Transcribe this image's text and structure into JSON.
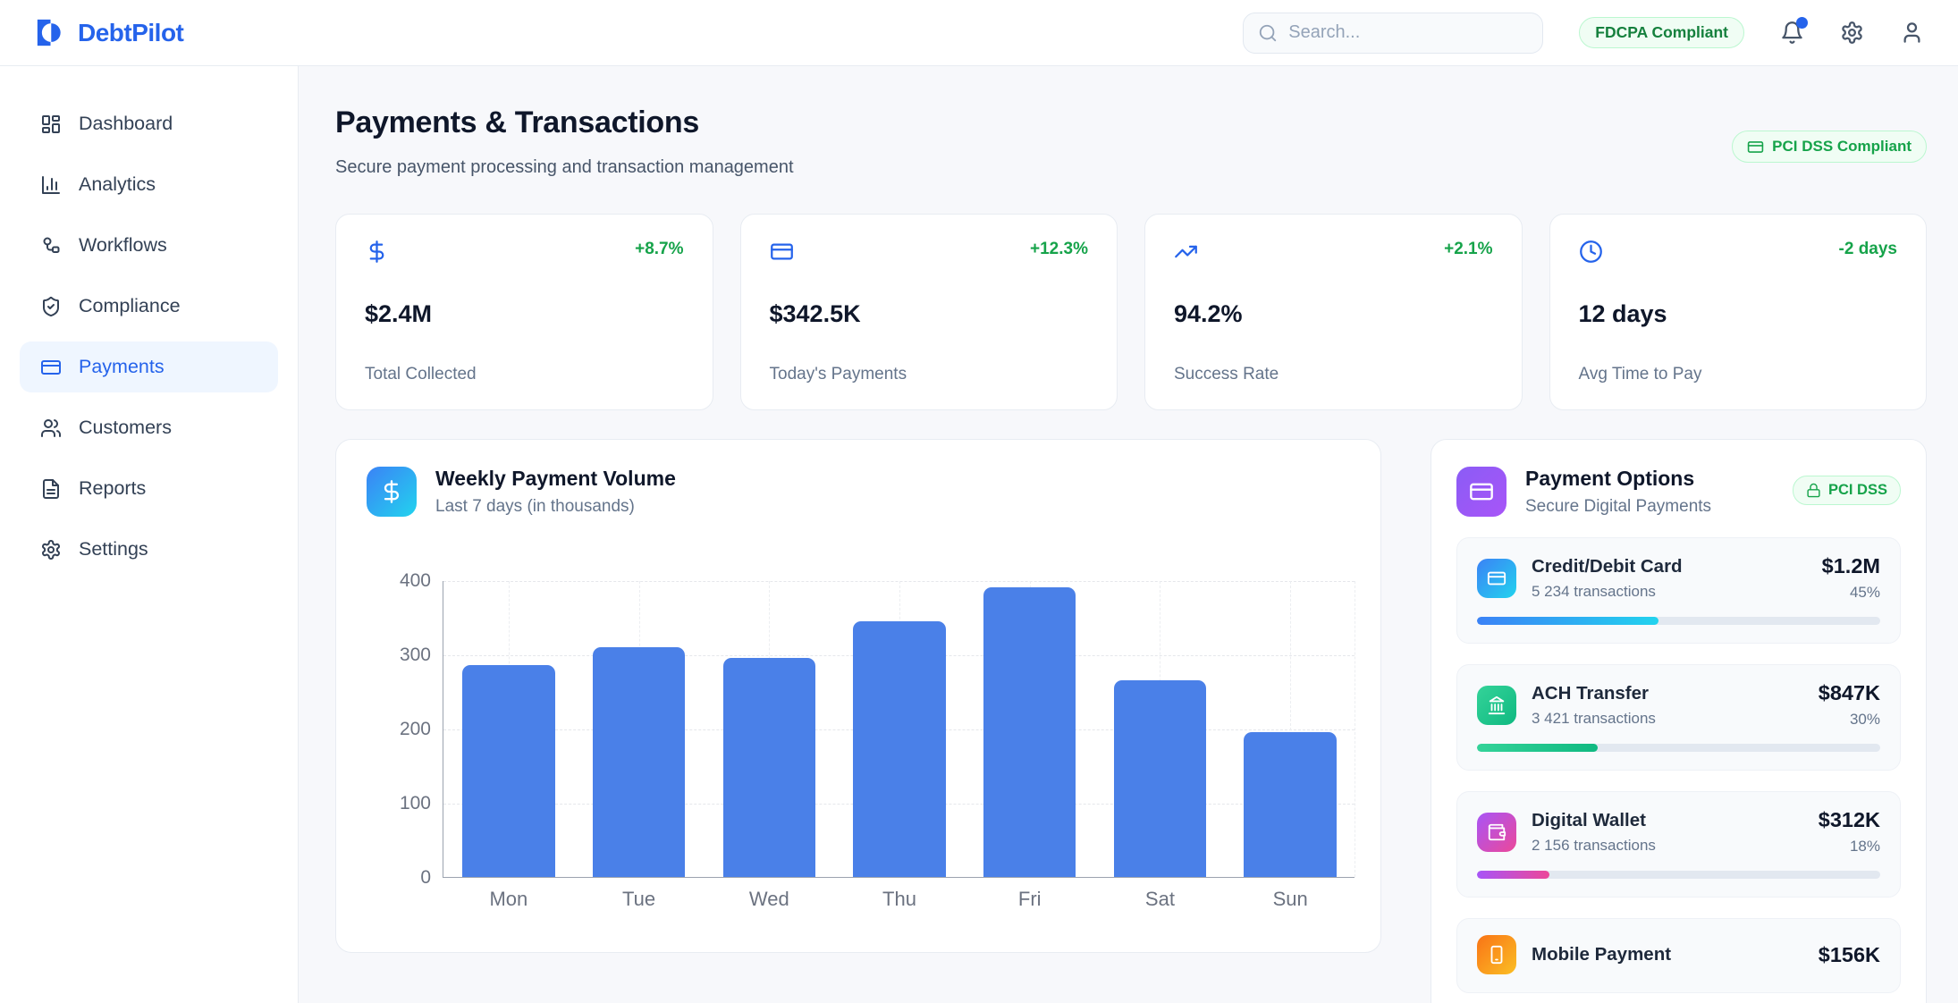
{
  "brand": {
    "name": "DebtPilot",
    "accent_color": "#2563eb"
  },
  "header": {
    "search_placeholder": "Search...",
    "compliance_badge": "FDCPA Compliant"
  },
  "sidebar": {
    "items": [
      {
        "label": "Dashboard",
        "icon": "dashboard-grid-icon",
        "active": false
      },
      {
        "label": "Analytics",
        "icon": "bar-chart-icon",
        "active": false
      },
      {
        "label": "Workflows",
        "icon": "workflow-icon",
        "active": false
      },
      {
        "label": "Compliance",
        "icon": "shield-check-icon",
        "active": false
      },
      {
        "label": "Payments",
        "icon": "credit-card-icon",
        "active": true
      },
      {
        "label": "Customers",
        "icon": "users-icon",
        "active": false
      },
      {
        "label": "Reports",
        "icon": "file-text-icon",
        "active": false
      },
      {
        "label": "Settings",
        "icon": "gear-icon",
        "active": false
      }
    ]
  },
  "page": {
    "title": "Payments & Transactions",
    "subtitle": "Secure payment processing and transaction management",
    "compliance_badge": "PCI DSS Compliant"
  },
  "stats": [
    {
      "icon": "dollar-icon",
      "delta": "+8.7%",
      "value": "$2.4M",
      "label": "Total Collected"
    },
    {
      "icon": "credit-card-icon",
      "delta": "+12.3%",
      "value": "$342.5K",
      "label": "Today's Payments"
    },
    {
      "icon": "trending-up-icon",
      "delta": "+2.1%",
      "value": "94.2%",
      "label": "Success Rate"
    },
    {
      "icon": "clock-icon",
      "delta": "-2 days",
      "value": "12 days",
      "label": "Avg Time to Pay"
    }
  ],
  "chart_card": {
    "title": "Weekly Payment Volume",
    "subtitle": "Last 7 days (in thousands)"
  },
  "chart_data": {
    "type": "bar",
    "title": "Weekly Payment Volume",
    "categories": [
      "Mon",
      "Tue",
      "Wed",
      "Thu",
      "Fri",
      "Sat",
      "Sun"
    ],
    "values": [
      285,
      310,
      295,
      345,
      390,
      265,
      195
    ],
    "xlabel": "",
    "ylabel": "",
    "ylim": [
      0,
      400
    ],
    "yticks": [
      0,
      100,
      200,
      300,
      400
    ],
    "grid": "dashed",
    "legend": "none",
    "bar_color": "#4a80e8"
  },
  "payment_options": {
    "title": "Payment Options",
    "subtitle": "Secure Digital Payments",
    "badge": "PCI DSS",
    "items": [
      {
        "name": "Credit/Debit Card",
        "transactions": "5 234 transactions",
        "amount": "$1.2M",
        "percent": "45%",
        "percent_value": 45,
        "icon": "credit-card-icon",
        "gradient": [
          "#3b82f6",
          "#22d3ee"
        ]
      },
      {
        "name": "ACH Transfer",
        "transactions": "3 421 transactions",
        "amount": "$847K",
        "percent": "30%",
        "percent_value": 30,
        "icon": "bank-icon",
        "gradient": [
          "#34d399",
          "#10b981"
        ]
      },
      {
        "name": "Digital Wallet",
        "transactions": "2 156 transactions",
        "amount": "$312K",
        "percent": "18%",
        "percent_value": 18,
        "icon": "wallet-icon",
        "gradient": [
          "#a855f7",
          "#ec4899"
        ]
      },
      {
        "name": "Mobile Payment",
        "amount": "$156K",
        "icon": "smartphone-icon",
        "gradient": [
          "#f97316",
          "#fbbf24"
        ]
      }
    ]
  }
}
